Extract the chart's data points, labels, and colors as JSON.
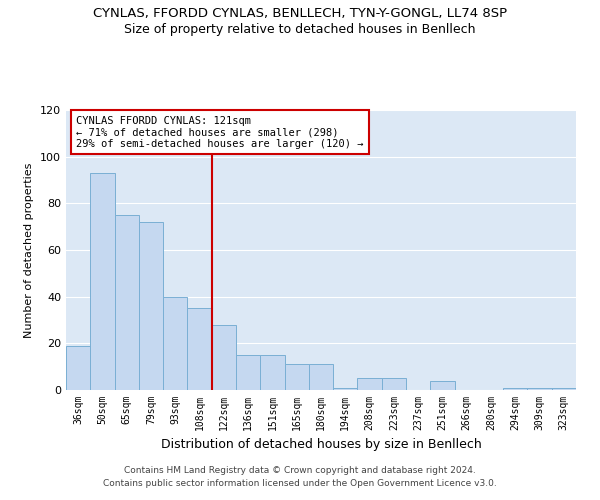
{
  "title": "CYNLAS, FFORDD CYNLAS, BENLLECH, TYN-Y-GONGL, LL74 8SP",
  "subtitle": "Size of property relative to detached houses in Benllech",
  "xlabel": "Distribution of detached houses by size in Benllech",
  "ylabel": "Number of detached properties",
  "footer_line1": "Contains HM Land Registry data © Crown copyright and database right 2024.",
  "footer_line2": "Contains public sector information licensed under the Open Government Licence v3.0.",
  "categories": [
    "36sqm",
    "50sqm",
    "65sqm",
    "79sqm",
    "93sqm",
    "108sqm",
    "122sqm",
    "136sqm",
    "151sqm",
    "165sqm",
    "180sqm",
    "194sqm",
    "208sqm",
    "223sqm",
    "237sqm",
    "251sqm",
    "266sqm",
    "280sqm",
    "294sqm",
    "309sqm",
    "323sqm"
  ],
  "values": [
    19,
    93,
    75,
    72,
    40,
    35,
    28,
    15,
    15,
    11,
    11,
    1,
    5,
    5,
    0,
    4,
    0,
    0,
    1,
    1,
    1
  ],
  "bar_color": "#c5d8f0",
  "bar_edge_color": "#7aafd4",
  "vline_x_index": 6,
  "vline_color": "#cc0000",
  "ylim": [
    0,
    120
  ],
  "yticks": [
    0,
    20,
    40,
    60,
    80,
    100,
    120
  ],
  "annotation_text": "CYNLAS FFORDD CYNLAS: 121sqm\n← 71% of detached houses are smaller (298)\n29% of semi-detached houses are larger (120) →",
  "annotation_box_color": "#cc0000",
  "annotation_bg": "#ffffff",
  "bg_color": "#dce8f5",
  "title_fontsize": 9.5,
  "subtitle_fontsize": 9,
  "ylabel_fontsize": 8,
  "xlabel_fontsize": 9,
  "footer_fontsize": 6.5
}
